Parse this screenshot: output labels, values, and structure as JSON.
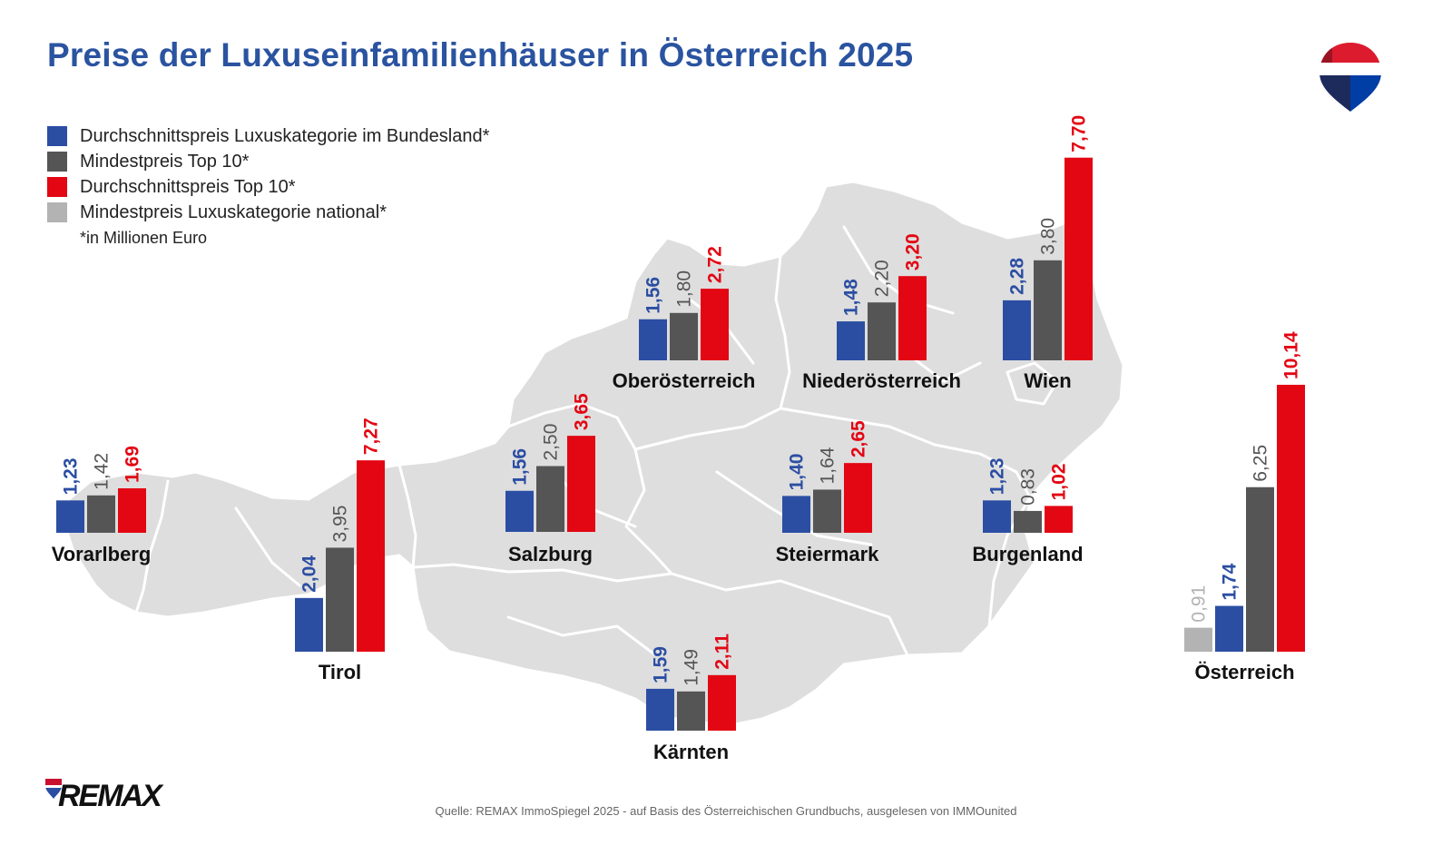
{
  "title": "Preise der Luxuseinfamilienhäuser in Österreich 2025",
  "legend": [
    {
      "label": "Durchschnittspreis Luxuskategorie im Bundesland*",
      "color": "#2b4ea3"
    },
    {
      "label": "Mindestpreis Top 10*",
      "color": "#555555"
    },
    {
      "label": "Durchschnittspreis Top 10*",
      "color": "#e30613"
    },
    {
      "label": "Mindestpreis Luxuskategorie national*",
      "color": "#b3b3b3"
    }
  ],
  "unit_note": "*in Millionen Euro",
  "source": "Quelle: REMAX ImmoSpiegel 2025 - auf Basis des Österreichischen Grundbuchs, ausgelesen von IMMOunited",
  "brand": {
    "name": "REMAX",
    "colors": [
      "#dc1c2e",
      "#ffffff",
      "#003da5"
    ]
  },
  "chart_data": {
    "type": "bar",
    "unit": "Millionen Euro",
    "decimal_separator": ",",
    "series_names": [
      "Durchschnittspreis Luxuskategorie im Bundesland*",
      "Mindestpreis Top 10*",
      "Durchschnittspreis Top 10*",
      "Mindestpreis Luxuskategorie national*"
    ],
    "regions": [
      {
        "name": "Vorarlberg",
        "values": [
          {
            "series": 0,
            "value": 1.23,
            "label": "1,23"
          },
          {
            "series": 1,
            "value": 1.42,
            "label": "1,42"
          },
          {
            "series": 2,
            "value": 1.69,
            "label": "1,69"
          }
        ]
      },
      {
        "name": "Tirol",
        "values": [
          {
            "series": 0,
            "value": 2.04,
            "label": "2,04"
          },
          {
            "series": 1,
            "value": 3.95,
            "label": "3,95"
          },
          {
            "series": 2,
            "value": 7.27,
            "label": "7,27"
          }
        ]
      },
      {
        "name": "Salzburg",
        "values": [
          {
            "series": 0,
            "value": 1.56,
            "label": "1,56"
          },
          {
            "series": 1,
            "value": 2.5,
            "label": "2,50"
          },
          {
            "series": 2,
            "value": 3.65,
            "label": "3,65"
          }
        ]
      },
      {
        "name": "Oberösterreich",
        "values": [
          {
            "series": 0,
            "value": 1.56,
            "label": "1,56"
          },
          {
            "series": 1,
            "value": 1.8,
            "label": "1,80"
          },
          {
            "series": 2,
            "value": 2.72,
            "label": "2,72"
          }
        ]
      },
      {
        "name": "Niederösterreich",
        "values": [
          {
            "series": 0,
            "value": 1.48,
            "label": "1,48"
          },
          {
            "series": 1,
            "value": 2.2,
            "label": "2,20"
          },
          {
            "series": 2,
            "value": 3.2,
            "label": "3,20"
          }
        ]
      },
      {
        "name": "Wien",
        "values": [
          {
            "series": 0,
            "value": 2.28,
            "label": "2,28"
          },
          {
            "series": 1,
            "value": 3.8,
            "label": "3,80"
          },
          {
            "series": 2,
            "value": 7.7,
            "label": "7,70"
          }
        ]
      },
      {
        "name": "Steiermark",
        "values": [
          {
            "series": 0,
            "value": 1.4,
            "label": "1,40"
          },
          {
            "series": 1,
            "value": 1.64,
            "label": "1,64"
          },
          {
            "series": 2,
            "value": 2.65,
            "label": "2,65"
          }
        ]
      },
      {
        "name": "Burgenland",
        "values": [
          {
            "series": 0,
            "value": 1.23,
            "label": "1,23"
          },
          {
            "series": 1,
            "value": 0.83,
            "label": "0,83"
          },
          {
            "series": 2,
            "value": 1.02,
            "label": "1,02"
          }
        ]
      },
      {
        "name": "Kärnten",
        "values": [
          {
            "series": 0,
            "value": 1.59,
            "label": "1,59"
          },
          {
            "series": 1,
            "value": 1.49,
            "label": "1,49"
          },
          {
            "series": 2,
            "value": 2.11,
            "label": "2,11"
          }
        ]
      },
      {
        "name": "Österreich",
        "values": [
          {
            "series": 3,
            "value": 0.91,
            "label": "0,91"
          },
          {
            "series": 0,
            "value": 1.74,
            "label": "1,74"
          },
          {
            "series": 1,
            "value": 6.25,
            "label": "6,25"
          },
          {
            "series": 2,
            "value": 10.14,
            "label": "10,14"
          }
        ]
      }
    ]
  }
}
